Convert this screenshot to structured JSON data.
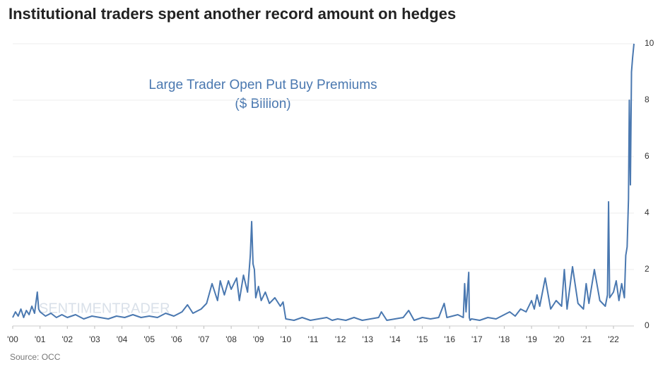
{
  "chart_data": {
    "type": "line",
    "title": "Institutional traders spent another record amount on hedges",
    "annotation": [
      "Large Trader Open Put Buy Premiums",
      "($ Billion)"
    ],
    "source": "Source: OCC",
    "watermark": "SENTIMENTRADER",
    "color": "#4a78b0",
    "grid": true,
    "x": [
      2000.0,
      2000.1,
      2000.2,
      2000.3,
      2000.4,
      2000.5,
      2000.6,
      2000.7,
      2000.8,
      2000.9,
      2000.95,
      2001.0,
      2001.2,
      2001.4,
      2001.6,
      2001.8,
      2002.0,
      2002.3,
      2002.6,
      2002.9,
      2003.2,
      2003.5,
      2003.8,
      2004.1,
      2004.4,
      2004.7,
      2005.0,
      2005.3,
      2005.6,
      2005.9,
      2006.2,
      2006.4,
      2006.6,
      2006.9,
      2007.1,
      2007.3,
      2007.5,
      2007.6,
      2007.75,
      2007.9,
      2008.0,
      2008.2,
      2008.3,
      2008.45,
      2008.6,
      2008.7,
      2008.75,
      2008.8,
      2008.85,
      2008.9,
      2009.0,
      2009.1,
      2009.25,
      2009.4,
      2009.6,
      2009.8,
      2009.9,
      2010.0,
      2010.3,
      2010.6,
      2010.9,
      2011.2,
      2011.5,
      2011.7,
      2011.9,
      2012.2,
      2012.5,
      2012.8,
      2013.1,
      2013.4,
      2013.5,
      2013.7,
      2014.0,
      2014.3,
      2014.5,
      2014.7,
      2015.0,
      2015.3,
      2015.6,
      2015.8,
      2015.9,
      2016.1,
      2016.3,
      2016.5,
      2016.55,
      2016.6,
      2016.7,
      2016.72,
      2016.75,
      2016.8,
      2017.1,
      2017.4,
      2017.7,
      2018.0,
      2018.2,
      2018.4,
      2018.6,
      2018.8,
      2019.0,
      2019.1,
      2019.2,
      2019.3,
      2019.5,
      2019.7,
      2019.9,
      2020.1,
      2020.2,
      2020.3,
      2020.5,
      2020.7,
      2020.9,
      2021.0,
      2021.1,
      2021.3,
      2021.5,
      2021.7,
      2021.78,
      2021.82,
      2021.86,
      2022.0,
      2022.1,
      2022.2,
      2022.3,
      2022.4,
      2022.45,
      2022.5,
      2022.55,
      2022.58,
      2022.62,
      2022.66,
      2022.7,
      2022.75
    ],
    "values": [
      0.3,
      0.5,
      0.35,
      0.6,
      0.3,
      0.55,
      0.4,
      0.7,
      0.45,
      1.2,
      0.6,
      0.5,
      0.35,
      0.45,
      0.3,
      0.4,
      0.3,
      0.4,
      0.25,
      0.35,
      0.3,
      0.25,
      0.35,
      0.3,
      0.4,
      0.3,
      0.35,
      0.3,
      0.45,
      0.35,
      0.5,
      0.75,
      0.45,
      0.6,
      0.8,
      1.5,
      0.9,
      1.6,
      1.1,
      1.6,
      1.3,
      1.7,
      0.9,
      1.8,
      1.2,
      2.5,
      3.7,
      2.2,
      2.0,
      1.0,
      1.4,
      0.9,
      1.2,
      0.8,
      1.0,
      0.7,
      0.85,
      0.25,
      0.2,
      0.3,
      0.2,
      0.25,
      0.3,
      0.2,
      0.25,
      0.2,
      0.3,
      0.2,
      0.25,
      0.3,
      0.5,
      0.2,
      0.25,
      0.3,
      0.55,
      0.2,
      0.3,
      0.25,
      0.3,
      0.8,
      0.3,
      0.35,
      0.4,
      0.3,
      1.5,
      0.5,
      1.9,
      0.3,
      0.2,
      0.25,
      0.2,
      0.3,
      0.25,
      0.4,
      0.5,
      0.35,
      0.6,
      0.5,
      0.9,
      0.6,
      1.1,
      0.7,
      1.7,
      0.6,
      0.9,
      0.7,
      2.0,
      0.6,
      2.1,
      0.8,
      0.6,
      1.5,
      0.8,
      2.0,
      0.9,
      0.7,
      1.1,
      4.4,
      1.0,
      1.2,
      1.6,
      0.9,
      1.5,
      1.0,
      2.5,
      2.8,
      4.5,
      8.0,
      5.0,
      9.0,
      9.5,
      10.0
    ],
    "xlim": [
      2000,
      2022.75
    ],
    "xticks": [
      {
        "value": 2000,
        "label": "'00"
      },
      {
        "value": 2001,
        "label": "'01"
      },
      {
        "value": 2002,
        "label": "'02"
      },
      {
        "value": 2003,
        "label": "'03"
      },
      {
        "value": 2004,
        "label": "'04"
      },
      {
        "value": 2005,
        "label": "'05"
      },
      {
        "value": 2006,
        "label": "'06"
      },
      {
        "value": 2007,
        "label": "'07"
      },
      {
        "value": 2008,
        "label": "'08"
      },
      {
        "value": 2009,
        "label": "'09"
      },
      {
        "value": 2010,
        "label": "'10"
      },
      {
        "value": 2011,
        "label": "'11"
      },
      {
        "value": 2012,
        "label": "'12"
      },
      {
        "value": 2013,
        "label": "'13"
      },
      {
        "value": 2014,
        "label": "'14"
      },
      {
        "value": 2015,
        "label": "'15"
      },
      {
        "value": 2016,
        "label": "'16"
      },
      {
        "value": 2017,
        "label": "'17"
      },
      {
        "value": 2018,
        "label": "'18"
      },
      {
        "value": 2019,
        "label": "'19"
      },
      {
        "value": 2020,
        "label": "'20"
      },
      {
        "value": 2021,
        "label": "'21"
      },
      {
        "value": 2022,
        "label": "'22"
      }
    ],
    "ylim": [
      0,
      10
    ],
    "yticks": [
      0,
      2,
      4,
      6,
      8,
      10
    ]
  }
}
